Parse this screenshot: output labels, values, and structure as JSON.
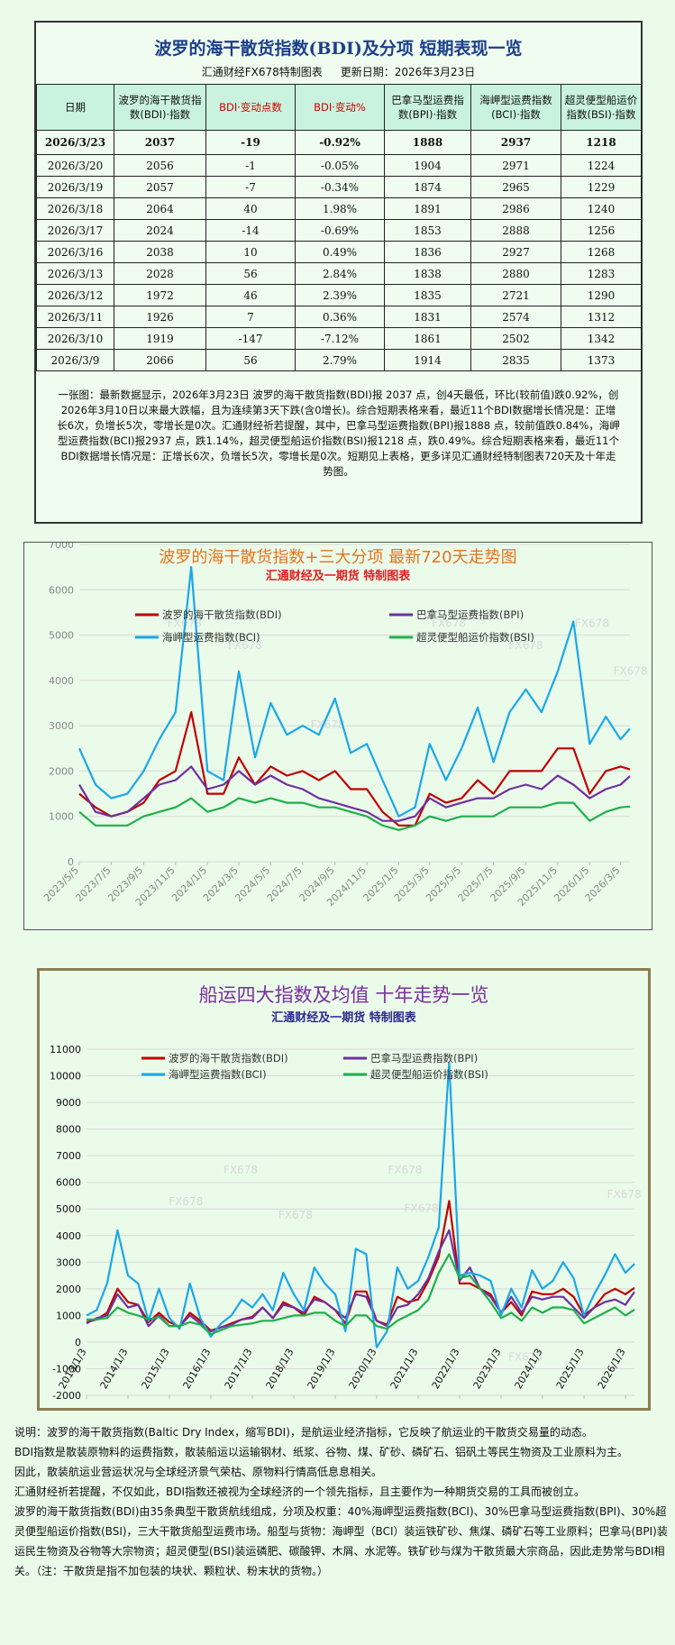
{
  "header": {
    "title": "波罗的海干散货指数(BDI)及分项  短期表现一览",
    "source": "汇通财经FX678特制图表",
    "updated": "更新日期：2026年3月23日"
  },
  "table": {
    "columns": [
      "日期",
      "波罗的海干散货指数(BDI)·指数",
      "BDI·变动点数",
      "BDI·变动%",
      "巴拿马型运费指数(BPI)·指数",
      "海岬型运费指数(BCI)·指数",
      "超灵便型船运价指数(BSI)·指数"
    ],
    "rows": [
      [
        "2026/3/23",
        "2037",
        "-19",
        "-0.92%",
        "1888",
        "2937",
        "1218"
      ],
      [
        "2026/3/20",
        "2056",
        "-1",
        "-0.05%",
        "1904",
        "2971",
        "1224"
      ],
      [
        "2026/3/19",
        "2057",
        "-7",
        "-0.34%",
        "1874",
        "2965",
        "1229"
      ],
      [
        "2026/3/18",
        "2064",
        "40",
        "1.98%",
        "1891",
        "2986",
        "1240"
      ],
      [
        "2026/3/17",
        "2024",
        "-14",
        "-0.69%",
        "1853",
        "2888",
        "1256"
      ],
      [
        "2026/3/16",
        "2038",
        "10",
        "0.49%",
        "1836",
        "2927",
        "1268"
      ],
      [
        "2026/3/13",
        "2028",
        "56",
        "2.84%",
        "1838",
        "2880",
        "1283"
      ],
      [
        "2026/3/12",
        "1972",
        "46",
        "2.39%",
        "1835",
        "2721",
        "1290"
      ],
      [
        "2026/3/11",
        "1926",
        "7",
        "0.36%",
        "1831",
        "2574",
        "1312"
      ],
      [
        "2026/3/10",
        "1919",
        "-147",
        "-7.12%",
        "1861",
        "2502",
        "1342"
      ],
      [
        "2026/3/9",
        "2066",
        "56",
        "2.79%",
        "1914",
        "2835",
        "1373"
      ]
    ]
  },
  "summary": "一张图：最新数据显示，2026年3月23日 波罗的海干散货指数(BDI)报 2037 点，创4天最低，环比(较前值)跌0.92%，创2026年3月10日以来最大跌幅，且为连续第3天下跌(含0增长)。综合短期表格来看，最近11个BDI数据增长情况是：正增长6次，负增长5次，零增长是0次。汇通财经祈若提醒，其中，巴拿马型运费指数(BPI)报1888 点，较前值跌0.84%，海岬型运费指数(BCI)报2937 点，跌1.14%，超灵便型船运价指数(BSI)报1218 点，跌0.49%。综合短期表格来看，最近11个BDI数据增长情况是：正增长6次，负增长5次，零增长是0次。短期见上表格，更多详见汇通财经特制图表720天及十年走势图。",
  "chart_data": [
    {
      "type": "line",
      "title": "波罗的海干散货指数+三大分项  最新720天走势图",
      "subtitle": "汇通财经及一期货 特制图表",
      "watermark": "FX678",
      "grid": true,
      "legend": "top",
      "x": [
        "2023/5/5",
        "2023/6/5",
        "2023/7/5",
        "2023/8/5",
        "2023/9/5",
        "2023/10/5",
        "2023/11/5",
        "2023/12/5",
        "2024/1/5",
        "2024/2/5",
        "2024/3/5",
        "2024/4/5",
        "2024/5/5",
        "2024/6/5",
        "2024/7/5",
        "2024/8/5",
        "2024/9/5",
        "2024/10/5",
        "2024/11/5",
        "2024/12/5",
        "2025/1/5",
        "2025/2/5",
        "2025/3/5",
        "2025/4/5",
        "2025/5/5",
        "2025/6/5",
        "2025/7/5",
        "2025/8/5",
        "2025/9/5",
        "2025/10/5",
        "2025/11/5",
        "2025/12/5",
        "2026/1/5",
        "2026/2/5",
        "2026/3/5",
        "2026/3/23"
      ],
      "series": [
        {
          "name": "波罗的海干散货指数(BDI)",
          "color": "#c00000",
          "values": [
            1500,
            1200,
            1000,
            1100,
            1300,
            1800,
            2000,
            3300,
            1500,
            1500,
            2300,
            1700,
            2100,
            1900,
            2000,
            1800,
            2000,
            1600,
            1600,
            1100,
            800,
            800,
            1500,
            1300,
            1400,
            1800,
            1500,
            2000,
            2000,
            2000,
            2500,
            2500,
            1500,
            2000,
            2100,
            2037
          ]
        },
        {
          "name": "巴拿马型运费指数(BPI)",
          "color": "#7030a0",
          "values": [
            1700,
            1100,
            1000,
            1100,
            1400,
            1700,
            1800,
            2100,
            1600,
            1700,
            2000,
            1700,
            1900,
            1700,
            1600,
            1400,
            1300,
            1200,
            1100,
            900,
            900,
            1000,
            1400,
            1200,
            1300,
            1400,
            1400,
            1600,
            1700,
            1600,
            1900,
            1700,
            1400,
            1600,
            1700,
            1888
          ]
        },
        {
          "name": "海岬型运费指数(BCI)",
          "color": "#1aa7e8",
          "values": [
            2500,
            1700,
            1400,
            1500,
            2000,
            2700,
            3300,
            6500,
            2000,
            1800,
            4200,
            2300,
            3500,
            2800,
            3000,
            2800,
            3600,
            2400,
            2600,
            1800,
            1000,
            1200,
            2600,
            1800,
            2500,
            3400,
            2200,
            3300,
            3800,
            3300,
            4200,
            5300,
            2600,
            3200,
            2700,
            2937
          ]
        },
        {
          "name": "超灵便型船运价指数(BSI)",
          "color": "#1fb04a",
          "values": [
            1100,
            800,
            800,
            800,
            1000,
            1100,
            1200,
            1400,
            1100,
            1200,
            1400,
            1300,
            1400,
            1300,
            1300,
            1200,
            1200,
            1100,
            1000,
            800,
            700,
            800,
            1000,
            900,
            1000,
            1000,
            1000,
            1200,
            1200,
            1200,
            1300,
            1300,
            900,
            1100,
            1200,
            1218
          ]
        }
      ],
      "xlim": [
        "2023/5/5",
        "2026/3/23"
      ],
      "xticks": [
        "2023/5/5",
        "2023/7/5",
        "2023/9/5",
        "2023/11/5",
        "2024/1/5",
        "2024/3/5",
        "2024/5/5",
        "2024/7/5",
        "2024/9/5",
        "2024/11/5",
        "2025/1/5",
        "2025/3/5",
        "2025/5/5",
        "2025/7/5",
        "2025/9/5",
        "2025/11/5",
        "2026/1/5",
        "2026/3/5"
      ],
      "ylim": [
        0,
        7000
      ],
      "yticks": [
        0,
        1000,
        2000,
        3000,
        4000,
        5000,
        6000,
        7000
      ]
    },
    {
      "type": "line",
      "title": "船运四大指数及均值 十年走势一览",
      "subtitle": "汇通财经及一期货 特制图表",
      "watermark": "FX678",
      "grid": true,
      "legend": "top",
      "x": [
        "2013/1/3",
        "2013/4/3",
        "2013/7/3",
        "2013/10/3",
        "2014/1/3",
        "2014/4/3",
        "2014/7/3",
        "2014/10/3",
        "2015/1/3",
        "2015/4/3",
        "2015/7/3",
        "2015/10/3",
        "2016/1/3",
        "2016/4/3",
        "2016/7/3",
        "2016/10/3",
        "2017/1/3",
        "2017/4/3",
        "2017/7/3",
        "2017/10/3",
        "2018/1/3",
        "2018/4/3",
        "2018/7/3",
        "2018/10/3",
        "2019/1/3",
        "2019/4/3",
        "2019/7/3",
        "2019/10/3",
        "2020/1/3",
        "2020/4/3",
        "2020/7/3",
        "2020/10/3",
        "2021/1/3",
        "2021/4/3",
        "2021/7/3",
        "2021/10/3",
        "2022/1/3",
        "2022/4/3",
        "2022/7/3",
        "2022/10/3",
        "2023/1/3",
        "2023/4/3",
        "2023/7/3",
        "2023/10/3",
        "2024/1/3",
        "2024/4/3",
        "2024/7/3",
        "2024/10/3",
        "2025/1/3",
        "2025/4/3",
        "2025/7/3",
        "2025/10/3",
        "2026/1/3",
        "2026/3/23"
      ],
      "series": [
        {
          "name": "波罗的海干散货指数(BDI)",
          "color": "#c00000",
          "values": [
            750,
            850,
            1100,
            2000,
            1500,
            1400,
            750,
            1100,
            750,
            580,
            1100,
            800,
            430,
            550,
            700,
            850,
            950,
            1300,
            900,
            1500,
            1300,
            1000,
            1700,
            1500,
            1200,
            700,
            1900,
            1900,
            800,
            650,
            1700,
            1500,
            1600,
            2300,
            3200,
            5300,
            2200,
            2200,
            2000,
            1800,
            1100,
            1500,
            1000,
            1900,
            1800,
            1800,
            2000,
            1700,
            1000,
            1300,
            1800,
            2000,
            1800,
            2037
          ]
        },
        {
          "name": "巴拿马型运费指数(BPI)",
          "color": "#7030a0",
          "values": [
            700,
            900,
            1000,
            1800,
            1300,
            1400,
            600,
            1000,
            600,
            600,
            1000,
            700,
            400,
            550,
            650,
            850,
            900,
            1300,
            900,
            1400,
            1300,
            1100,
            1600,
            1500,
            1200,
            900,
            1800,
            1700,
            800,
            600,
            1300,
            1400,
            1800,
            2400,
            3400,
            4200,
            2300,
            2800,
            2000,
            1700,
            1100,
            1700,
            1100,
            1700,
            1600,
            1700,
            1700,
            1300,
            900,
            1300,
            1500,
            1600,
            1400,
            1888
          ]
        },
        {
          "name": "海岬型运费指数(BCI)",
          "color": "#1aa7e8",
          "values": [
            1000,
            1200,
            2200,
            4200,
            2500,
            2200,
            800,
            2000,
            900,
            500,
            2200,
            900,
            200,
            700,
            1000,
            1600,
            1300,
            1800,
            1200,
            2600,
            1800,
            1200,
            2800,
            2200,
            1800,
            400,
            3500,
            3300,
            -200,
            400,
            2800,
            2000,
            2300,
            3200,
            4300,
            10500,
            2500,
            2600,
            2500,
            2300,
            1000,
            2000,
            1300,
            2700,
            2000,
            2300,
            3000,
            2400,
            1000,
            1800,
            2500,
            3300,
            2600,
            2937
          ]
        },
        {
          "name": "超灵便型船运价指数(BSI)",
          "color": "#1fb04a",
          "values": [
            850,
            850,
            900,
            1300,
            1100,
            1000,
            850,
            950,
            600,
            600,
            750,
            650,
            300,
            450,
            600,
            650,
            700,
            800,
            800,
            900,
            1000,
            1000,
            1100,
            1100,
            800,
            600,
            1000,
            1000,
            600,
            500,
            800,
            1000,
            1200,
            1600,
            2600,
            3300,
            2400,
            2500,
            2000,
            1500,
            900,
            1100,
            800,
            1300,
            1100,
            1300,
            1300,
            1200,
            700,
            900,
            1100,
            1300,
            1000,
            1218
          ]
        }
      ],
      "xlim": [
        "2013/1/3",
        "2026/3/23"
      ],
      "xticks": [
        "2013/1/3",
        "2014/1/3",
        "2015/1/3",
        "2016/1/3",
        "2017/1/3",
        "2018/1/3",
        "2019/1/3",
        "2020/1/3",
        "2021/1/3",
        "2022/1/3",
        "2023/1/3",
        "2024/1/3",
        "2025/1/3",
        "2026/1/3"
      ],
      "ylim": [
        -2000,
        11000
      ],
      "yticks": [
        -2000,
        -1000,
        0,
        1000,
        2000,
        3000,
        4000,
        5000,
        6000,
        7000,
        8000,
        9000,
        10000,
        11000
      ]
    }
  ],
  "notes": [
    "说明：波罗的海干散货指数(Baltic Dry Index，缩写BDI)，是航运业经济指标，它反映了航运业的干散货交易量的动态。",
    "BDI指数是散装原物料的运费指数，散装船运以运输钢材、纸浆、谷物、煤、矿砂、磷矿石、铝矾土等民生物资及工业原料为主。",
    "因此，散装航运业营运状况与全球经济景气荣枯、原物料行情高低息息相关。",
    "汇通财经祈若提醒，不仅如此，BDI指数还被视为全球经济的一个领先指标，且主要作为一种期货交易的工具而被创立。",
    "波罗的海干散货指数(BDI)由35条典型干散货航线组成，分项及权重：40%海岬型运费指数(BCI)、30%巴拿马型运费指数(BPI)、30%超灵便型船运价指数(BSI)，三大干散货船型运费市场。船型与货物：海岬型（BCI）装运铁矿砂、焦煤、磷矿石等工业原料；巴拿马(BPI)装运民生物资及谷物等大宗物资；超灵便型(BSI)装运磷肥、碳酸钾、木屑、水泥等。铁矿砂与煤为干散货最大宗商品，因此走势常与BDI相关。（注：干散货是指不加包装的块状、颗粒状、粉末状的货物。）"
  ]
}
